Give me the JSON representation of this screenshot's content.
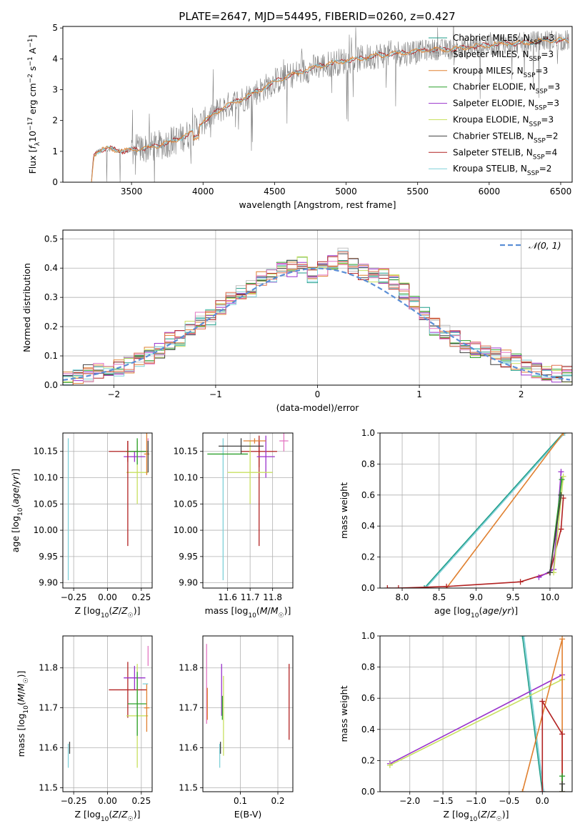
{
  "figure_title": "PLATE=2647, MJD=54495, FIBERID=0260, z=0.427",
  "series_legend": [
    {
      "label": "Chabrier MILES, N",
      "sub": "SSP",
      "tail": "=3",
      "color": "#1f9e89"
    },
    {
      "label": "Salpeter MILES, N",
      "sub": "SSP",
      "tail": "=3",
      "color": "#c0c0c0"
    },
    {
      "label": "Kroupa MILES, N",
      "sub": "SSP",
      "tail": "=3",
      "color": "#e08030"
    },
    {
      "label": "Chabrier ELODIE, N",
      "sub": "SSP",
      "tail": "=3",
      "color": "#2ca02c"
    },
    {
      "label": "Salpeter ELODIE, N",
      "sub": "SSP",
      "tail": "=3",
      "color": "#9932cc"
    },
    {
      "label": "Kroupa ELODIE, N",
      "sub": "SSP",
      "tail": "=3",
      "color": "#c8e060"
    },
    {
      "label": "Chabrier STELIB, N",
      "sub": "SSP",
      "tail": "=2",
      "color": "#404040"
    },
    {
      "label": "Salpeter STELIB, N",
      "sub": "SSP",
      "tail": "=4",
      "color": "#b22222"
    },
    {
      "label": "Kroupa STELIB, N",
      "sub": "SSP",
      "tail": "=2",
      "color": "#7fd0d8"
    }
  ],
  "chart_data": [
    {
      "id": "spectrum",
      "type": "line",
      "xlabel": "wavelength [Angstrom, rest frame]",
      "ylabel": "Flux [f_λ 10^-17 erg cm^-2 s^-1 A^-1]",
      "xlim": [
        3020,
        6580
      ],
      "ylim": [
        0,
        5.05
      ],
      "xticks": [
        3500,
        4000,
        4500,
        5000,
        5500,
        6000,
        6500
      ],
      "yticks": [
        0,
        1,
        2,
        3,
        4,
        5
      ],
      "grid": false,
      "legend": "top-right",
      "data_color": "#808080",
      "model_colors": [
        "#b22222",
        "#7fd0d8",
        "#e08030"
      ],
      "model_continuum": {
        "x": [
          3220,
          3235,
          3260,
          3300,
          3350,
          3400,
          3450,
          3500,
          3600,
          3700,
          3800,
          3900,
          3950,
          4000,
          4100,
          4200,
          4300,
          4400,
          4500,
          4600,
          4700,
          4800,
          4900,
          5000,
          5100,
          5200,
          5300,
          5400,
          5500,
          5600,
          5700,
          5800,
          5900,
          6000,
          6100,
          6200,
          6300,
          6400,
          6500
        ],
        "y": [
          0.0,
          0.85,
          1.0,
          1.05,
          1.1,
          1.05,
          1.0,
          1.05,
          1.1,
          1.2,
          1.35,
          1.55,
          1.75,
          1.95,
          2.3,
          2.55,
          2.75,
          3.0,
          3.25,
          3.45,
          3.6,
          3.75,
          3.85,
          3.95,
          4.0,
          4.1,
          4.15,
          4.2,
          4.25,
          4.3,
          4.3,
          4.35,
          4.4,
          4.45,
          4.5,
          4.5,
          4.55,
          4.6,
          4.6
        ]
      }
    },
    {
      "id": "residuals",
      "type": "step",
      "xlabel": "(data-model)/error",
      "ylabel": "Normed distribution",
      "xlim": [
        -2.5,
        2.5
      ],
      "ylim": [
        0,
        0.53
      ],
      "xticks": [
        -2,
        -1,
        0,
        1,
        2
      ],
      "yticks": [
        0.0,
        0.1,
        0.2,
        0.3,
        0.4,
        0.5
      ],
      "grid": true,
      "legend": "top-right",
      "legend_label": "𝒩(0, 1)",
      "reference_curve": "normal(0,1)",
      "bin_centers": [
        -2.45,
        -2.35,
        -2.25,
        -2.15,
        -2.05,
        -1.95,
        -1.85,
        -1.75,
        -1.65,
        -1.55,
        -1.45,
        -1.35,
        -1.25,
        -1.15,
        -1.05,
        -0.95,
        -0.85,
        -0.75,
        -0.65,
        -0.55,
        -0.45,
        -0.35,
        -0.25,
        -0.15,
        -0.05,
        0.05,
        0.15,
        0.25,
        0.35,
        0.45,
        0.55,
        0.65,
        0.75,
        0.85,
        0.95,
        1.05,
        1.15,
        1.25,
        1.35,
        1.45,
        1.55,
        1.65,
        1.75,
        1.85,
        1.95,
        2.05,
        2.15,
        2.25,
        2.35,
        2.45
      ],
      "hist_base": [
        0.02,
        0.03,
        0.04,
        0.05,
        0.05,
        0.06,
        0.07,
        0.09,
        0.1,
        0.12,
        0.15,
        0.16,
        0.19,
        0.22,
        0.23,
        0.27,
        0.3,
        0.32,
        0.33,
        0.36,
        0.37,
        0.39,
        0.4,
        0.41,
        0.38,
        0.4,
        0.42,
        0.44,
        0.41,
        0.39,
        0.38,
        0.37,
        0.35,
        0.32,
        0.28,
        0.24,
        0.2,
        0.18,
        0.16,
        0.14,
        0.12,
        0.11,
        0.1,
        0.09,
        0.08,
        0.06,
        0.05,
        0.04,
        0.04,
        0.04
      ]
    },
    {
      "id": "age-vs-Z",
      "type": "errorbar",
      "xlabel": "Z [log10(Z/Z☉)]",
      "ylabel": "age [log10(age/yr)]",
      "xlim": [
        -0.33,
        0.33
      ],
      "ylim": [
        9.89,
        10.185
      ],
      "xticks": [
        -0.25,
        0.0,
        0.25
      ],
      "xticklabels": [
        "−0.25",
        "0.00",
        "0.25"
      ],
      "yticks": [
        9.9,
        9.95,
        10.0,
        10.05,
        10.1,
        10.15
      ],
      "yticklabels": [
        "9.90",
        "9.95",
        "10.00",
        "10.05",
        "10.10",
        "10.15"
      ],
      "grid": true,
      "points": [
        {
          "x": -0.29,
          "y": 10.04,
          "xerr": 0.0,
          "yerr": 0.135,
          "color": "#7fd0d8"
        },
        {
          "x": 0.15,
          "y": 10.15,
          "xerr": 0.14,
          "yerr": 0.02,
          "color": "#b22222"
        },
        {
          "x": 0.2,
          "y": 10.14,
          "xerr": 0.08,
          "yerr": 0.01,
          "color": "#9932cc"
        },
        {
          "x": 0.22,
          "y": 10.11,
          "xerr": 0.08,
          "yerr": 0.06,
          "color": "#c8e060"
        },
        {
          "x": 0.22,
          "y": 10.15,
          "xerr": 0.08,
          "yerr": 0.025,
          "color": "#2ca02c"
        },
        {
          "x": 0.29,
          "y": 10.145,
          "xerr": 0.02,
          "yerr": 0.04,
          "color": "#e08030"
        },
        {
          "x": 0.3,
          "y": 10.16,
          "xerr": 0.0,
          "yerr": 0.015,
          "color": "#e377c2"
        },
        {
          "x": 0.15,
          "y": 10.07,
          "xerr": 0.0,
          "yerr": 0.1,
          "color": "#b22222"
        },
        {
          "x": 0.3,
          "y": 10.14,
          "xerr": 0.0,
          "yerr": 0.03,
          "color": "#404040"
        }
      ]
    },
    {
      "id": "age-vs-mass",
      "type": "errorbar",
      "xlabel": "mass [log10(M/M☉)]",
      "ylabel": "",
      "xlim": [
        11.49,
        11.89
      ],
      "ylim": [
        9.89,
        10.185
      ],
      "xticks": [
        11.6,
        11.7,
        11.8
      ],
      "xticklabels": [
        "11.6",
        "11.7",
        "11.8"
      ],
      "yticks": [
        9.9,
        9.95,
        10.0,
        10.05,
        10.1,
        10.15
      ],
      "yticklabels": [
        "9.90",
        "9.95",
        "10.00",
        "10.05",
        "10.10",
        "10.15"
      ],
      "grid": true,
      "points": [
        {
          "x": 11.58,
          "y": 10.04,
          "xerr": 0.0,
          "yerr": 0.135,
          "color": "#7fd0d8"
        },
        {
          "x": 11.6,
          "y": 10.145,
          "xerr": 0.09,
          "yerr": 0.0,
          "color": "#2ca02c"
        },
        {
          "x": 11.74,
          "y": 10.15,
          "xerr": 0.08,
          "yerr": 0.03,
          "color": "#b22222"
        },
        {
          "x": 11.74,
          "y": 10.07,
          "xerr": 0.0,
          "yerr": 0.1,
          "color": "#b22222"
        },
        {
          "x": 11.77,
          "y": 10.14,
          "xerr": 0.04,
          "yerr": 0.04,
          "color": "#9932cc"
        },
        {
          "x": 11.7,
          "y": 10.11,
          "xerr": 0.1,
          "yerr": 0.06,
          "color": "#c8e060"
        },
        {
          "x": 11.85,
          "y": 10.17,
          "xerr": 0.02,
          "yerr": 0.02,
          "color": "#e377c2"
        },
        {
          "x": 11.66,
          "y": 10.16,
          "xerr": 0.1,
          "yerr": 0.015,
          "color": "#404040"
        },
        {
          "x": 11.72,
          "y": 10.17,
          "xerr": 0.05,
          "yerr": 0.005,
          "color": "#e08030"
        }
      ]
    },
    {
      "id": "mass-weight-vs-age",
      "type": "line",
      "xlabel": "age [log10(age/yr)]",
      "ylabel": "mass weight",
      "xlim": [
        7.7,
        10.3
      ],
      "ylim": [
        0,
        1
      ],
      "xticks": [
        8.0,
        8.5,
        9.0,
        9.5,
        10.0
      ],
      "xticklabels": [
        "8.0",
        "8.5",
        "9.0",
        "9.5",
        "10.0"
      ],
      "yticks": [
        0.0,
        0.2,
        0.4,
        0.6,
        0.8,
        1.0
      ],
      "yticklabels": [
        "0.0",
        "0.2",
        "0.4",
        "0.6",
        "0.8",
        "1.0"
      ],
      "grid": true,
      "series": [
        {
          "name": "Chabrier MILES",
          "color": "#1f9e89",
          "x": [
            8.3,
            10.18
          ],
          "y": [
            0.0,
            1.0
          ]
        },
        {
          "name": "Kroupa STELIB",
          "color": "#7fd0d8",
          "x": [
            8.32,
            10.2
          ],
          "y": [
            0.0,
            1.0
          ]
        },
        {
          "name": "Kroupa MILES",
          "color": "#e08030",
          "x": [
            8.6,
            10.18
          ],
          "y": [
            0.0,
            1.0
          ]
        },
        {
          "name": "Salpeter STELIB",
          "color": "#b22222",
          "x": [
            7.8,
            7.95,
            8.6,
            9.6,
            10.0,
            10.15,
            10.18
          ],
          "y": [
            0.0,
            0.0,
            0.01,
            0.04,
            0.1,
            0.38,
            0.58
          ]
        },
        {
          "name": "Salpeter ELODIE",
          "color": "#9932cc",
          "x": [
            9.85,
            10.05,
            10.15
          ],
          "y": [
            0.07,
            0.12,
            0.75
          ]
        },
        {
          "name": "Kroupa ELODIE",
          "color": "#c8e060",
          "x": [
            10.05,
            10.18
          ],
          "y": [
            0.1,
            0.72
          ]
        },
        {
          "name": "Chabrier ELODIE",
          "color": "#2ca02c",
          "x": [
            10.0,
            10.16
          ],
          "y": [
            0.1,
            0.7
          ]
        },
        {
          "name": "Chabrier STELIB",
          "color": "#404040",
          "x": [
            10.0,
            10.15
          ],
          "y": [
            0.1,
            0.6
          ]
        }
      ]
    },
    {
      "id": "mass-vs-Z",
      "type": "errorbar",
      "xlabel": "Z [log10(Z/Z☉)]",
      "ylabel": "mass [log10(M/M☉)]",
      "xlim": [
        -0.33,
        0.33
      ],
      "ylim": [
        11.49,
        11.88
      ],
      "xticks": [
        -0.25,
        0.0,
        0.25
      ],
      "xticklabels": [
        "−0.25",
        "0.00",
        "0.25"
      ],
      "yticks": [
        11.5,
        11.6,
        11.7,
        11.8
      ],
      "yticklabels": [
        "11.5",
        "11.6",
        "11.7",
        "11.8"
      ],
      "grid": true,
      "points": [
        {
          "x": -0.29,
          "y": 11.58,
          "xerr": 0.0,
          "yerr": 0.03,
          "color": "#7fd0d8"
        },
        {
          "x": -0.28,
          "y": 11.6,
          "xerr": 0.0,
          "yerr": 0.015,
          "color": "#404040"
        },
        {
          "x": 0.15,
          "y": 11.745,
          "xerr": 0.14,
          "yerr": 0.07,
          "color": "#b22222"
        },
        {
          "x": 0.2,
          "y": 11.775,
          "xerr": 0.08,
          "yerr": 0.03,
          "color": "#9932cc"
        },
        {
          "x": 0.22,
          "y": 11.68,
          "xerr": 0.08,
          "yerr": 0.13,
          "color": "#c8e060"
        },
        {
          "x": 0.22,
          "y": 11.71,
          "xerr": 0.07,
          "yerr": 0.08,
          "color": "#2ca02c"
        },
        {
          "x": 0.29,
          "y": 11.7,
          "xerr": 0.02,
          "yerr": 0.06,
          "color": "#e08030"
        },
        {
          "x": 0.3,
          "y": 11.83,
          "xerr": 0.0,
          "yerr": 0.025,
          "color": "#e377c2"
        },
        {
          "x": 0.28,
          "y": 11.76,
          "xerr": 0.02,
          "yerr": 0.0,
          "color": "#7fd0d8"
        }
      ]
    },
    {
      "id": "mass-vs-EBV",
      "type": "errorbar",
      "xlabel": "E(B-V)",
      "ylabel": "",
      "xlim": [
        0.0,
        0.24
      ],
      "ylim": [
        11.49,
        11.88
      ],
      "xticks": [
        0.1,
        0.2
      ],
      "xticklabels": [
        "0.1",
        "0.2"
      ],
      "yticks": [
        11.5,
        11.6,
        11.7,
        11.8
      ],
      "yticklabels": [
        "11.5",
        "11.6",
        "11.7",
        "11.8"
      ],
      "grid": true,
      "points": [
        {
          "x": 0.01,
          "y": 11.76,
          "xerr": 0.0,
          "yerr": 0.1,
          "color": "#e377c2"
        },
        {
          "x": 0.012,
          "y": 11.71,
          "xerr": 0.0,
          "yerr": 0.04,
          "color": "#e08030"
        },
        {
          "x": 0.045,
          "y": 11.58,
          "xerr": 0.0,
          "yerr": 0.03,
          "color": "#7fd0d8"
        },
        {
          "x": 0.047,
          "y": 11.6,
          "xerr": 0.0,
          "yerr": 0.015,
          "color": "#404040"
        },
        {
          "x": 0.05,
          "y": 11.745,
          "xerr": 0.0,
          "yerr": 0.065,
          "color": "#9932cc"
        },
        {
          "x": 0.055,
          "y": 11.68,
          "xerr": 0.0,
          "yerr": 0.1,
          "color": "#c8e060"
        },
        {
          "x": 0.052,
          "y": 11.7,
          "xerr": 0.0,
          "yerr": 0.03,
          "color": "#2ca02c"
        },
        {
          "x": 0.23,
          "y": 11.715,
          "xerr": 0.0,
          "yerr": 0.095,
          "color": "#b22222"
        }
      ]
    },
    {
      "id": "mass-weight-vs-Z",
      "type": "line",
      "xlabel": "Z [log10(Z/Z☉)]",
      "ylabel": "mass weight",
      "xlim": [
        -2.45,
        0.45
      ],
      "ylim": [
        0,
        1
      ],
      "xticks": [
        -2.0,
        -1.5,
        -1.0,
        -0.5,
        0.0
      ],
      "xticklabels": [
        "−2.0",
        "−1.5",
        "−1.0",
        "−0.5",
        "0.0"
      ],
      "yticks": [
        0.0,
        0.2,
        0.4,
        0.6,
        0.8,
        1.0
      ],
      "yticklabels": [
        "0.0",
        "0.2",
        "0.4",
        "0.6",
        "0.8",
        "1.0"
      ],
      "grid": true,
      "series": [
        {
          "name": "Chabrier MILES",
          "color": "#1f9e89",
          "x": [
            -0.3,
            0.0
          ],
          "y": [
            1.0,
            0.0
          ]
        },
        {
          "name": "Kroupa STELIB",
          "color": "#7fd0d8",
          "x": [
            -0.28,
            0.02
          ],
          "y": [
            1.0,
            0.0
          ]
        },
        {
          "name": "Salpeter ELODIE",
          "color": "#9932cc",
          "x": [
            -2.3,
            0.3
          ],
          "y": [
            0.18,
            0.75
          ]
        },
        {
          "name": "Kroupa ELODIE",
          "color": "#c8e060",
          "x": [
            -2.3,
            0.3
          ],
          "y": [
            0.17,
            0.72
          ]
        },
        {
          "name": "Kroupa MILES",
          "color": "#e08030",
          "x": [
            -0.3,
            0.3,
            0.3
          ],
          "y": [
            0.0,
            0.98,
            0.0
          ]
        },
        {
          "name": "Salpeter STELIB",
          "color": "#b22222",
          "x": [
            0.0,
            0.0,
            0.3,
            0.3
          ],
          "y": [
            0.0,
            0.58,
            0.37,
            0.0
          ]
        },
        {
          "name": "Chabrier ELODIE",
          "color": "#2ca02c",
          "x": [
            0.3,
            0.3
          ],
          "y": [
            0.0,
            0.1
          ]
        },
        {
          "name": "Chabrier STELIB",
          "color": "#404040",
          "x": [
            0.3,
            0.3
          ],
          "y": [
            0.0,
            0.05
          ]
        }
      ]
    }
  ]
}
